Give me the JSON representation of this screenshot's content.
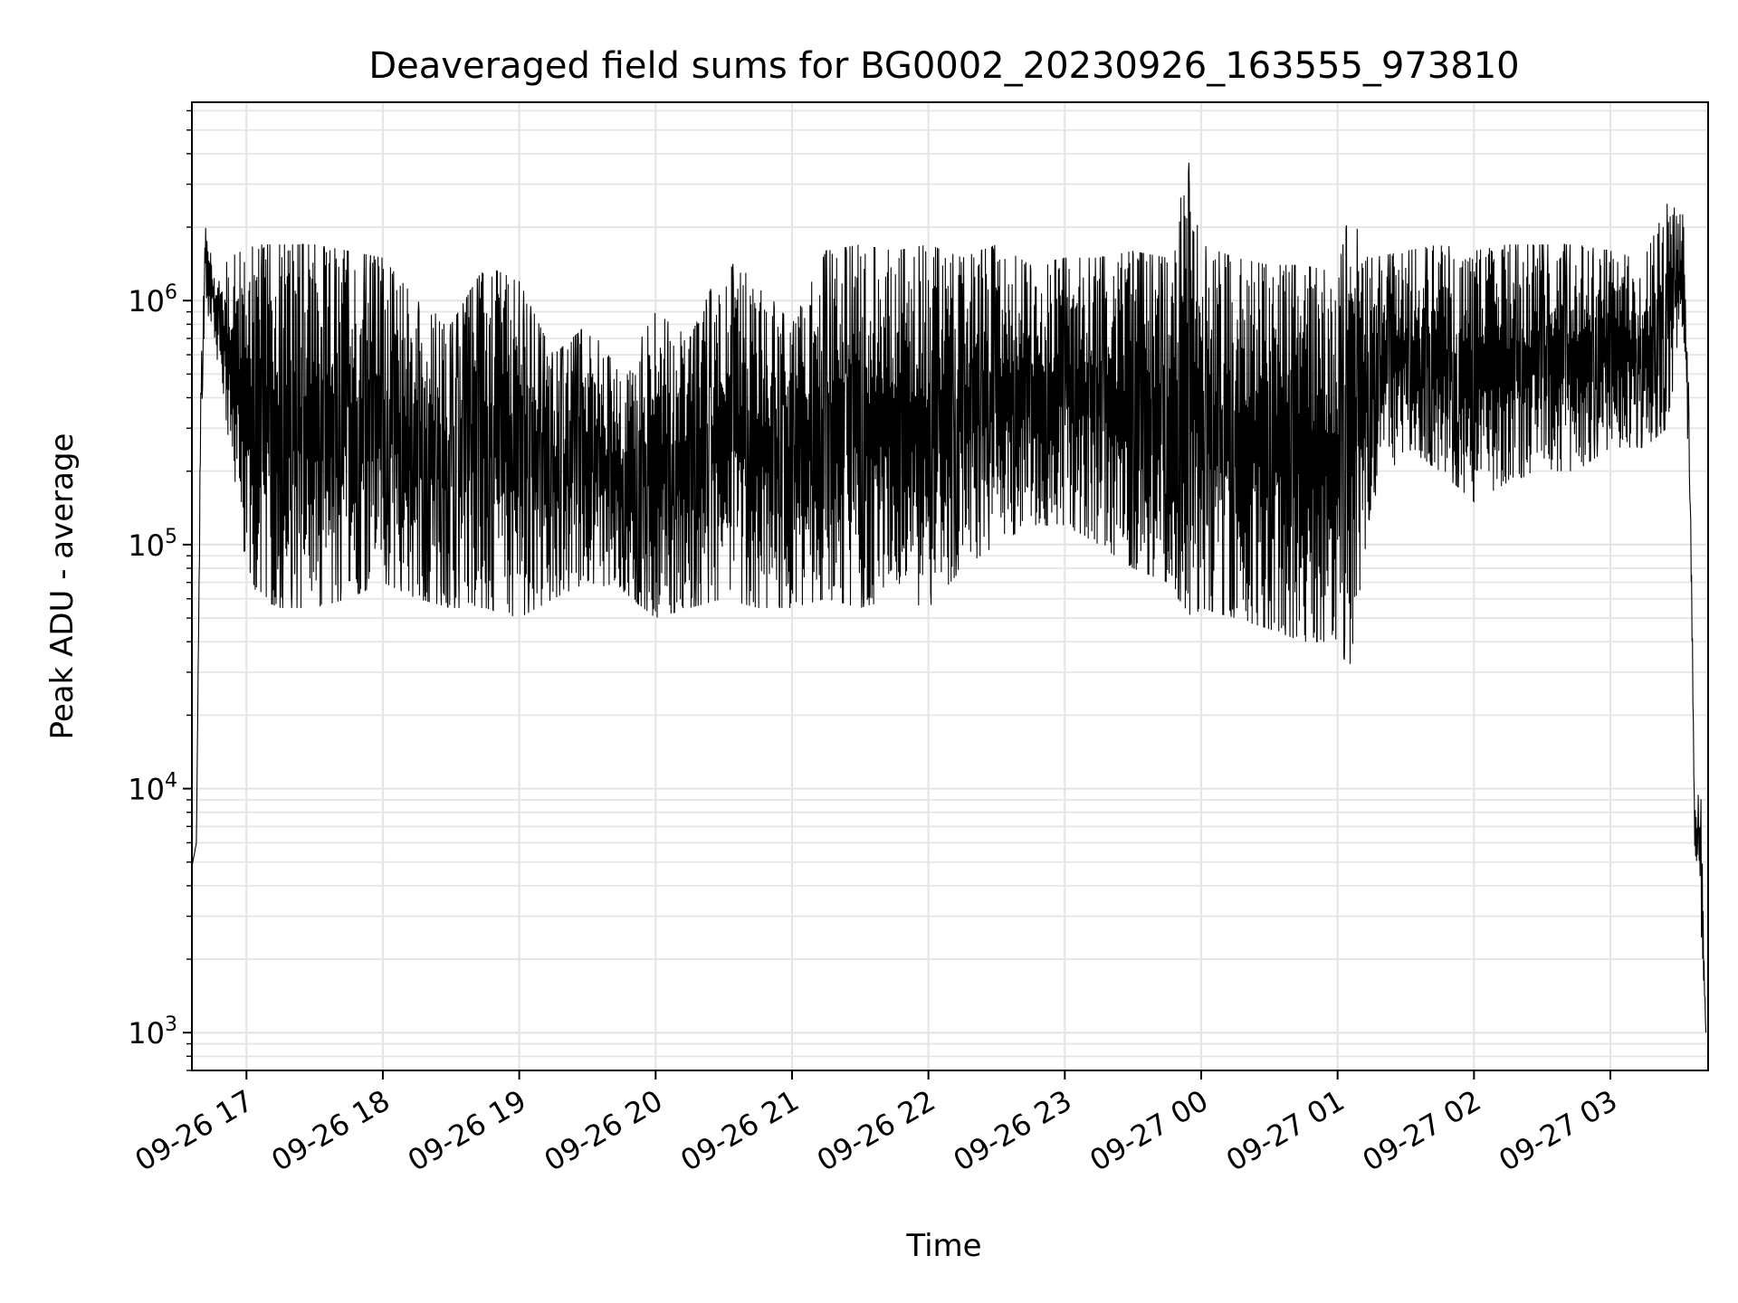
{
  "chart_data": {
    "type": "line",
    "title": "Deaveraged field sums for BG0002_20230926_163555_973810",
    "xlabel": "Time",
    "ylabel": "Peak ADU - average",
    "yscale": "log",
    "xlim": [
      "2023-09-26 16:36",
      "2023-09-27 03:43"
    ],
    "ylim": [
      700,
      6500000
    ],
    "grid": true,
    "grid_which": "both",
    "line_color": "#000000",
    "x_tick_labels": [
      "09-26 17",
      "09-26 18",
      "09-26 19",
      "09-26 20",
      "09-26 21",
      "09-26 22",
      "09-26 23",
      "09-27 00",
      "09-27 01",
      "09-27 02",
      "09-27 03"
    ],
    "x_tick_values": [
      "2023-09-26 17:00",
      "2023-09-26 18:00",
      "2023-09-26 19:00",
      "2023-09-26 20:00",
      "2023-09-26 21:00",
      "2023-09-26 22:00",
      "2023-09-26 23:00",
      "2023-09-27 00:00",
      "2023-09-27 01:00",
      "2023-09-27 02:00",
      "2023-09-27 03:00"
    ],
    "y_tick_values": [
      1000,
      10000,
      100000,
      1000000
    ],
    "y_tick_base": "10",
    "y_tick_exponents": [
      "3",
      "4",
      "5",
      "6"
    ],
    "series": [
      {
        "x": [
          "2023-09-26 16:36",
          "2023-09-26 16:38",
          "2023-09-26 16:40",
          "2023-09-26 16:42",
          "2023-09-26 16:45",
          "2023-09-26 16:48",
          "2023-09-26 16:52",
          "2023-09-26 16:58",
          "2023-09-26 17:05",
          "2023-09-26 17:15",
          "2023-09-26 17:30",
          "2023-09-26 17:45",
          "2023-09-26 18:00",
          "2023-09-26 18:15",
          "2023-09-26 18:30",
          "2023-09-26 18:45",
          "2023-09-26 19:00",
          "2023-09-26 19:15",
          "2023-09-26 19:30",
          "2023-09-26 19:45",
          "2023-09-26 20:00",
          "2023-09-26 20:15",
          "2023-09-26 20:30",
          "2023-09-26 20:45",
          "2023-09-26 21:00",
          "2023-09-26 21:15",
          "2023-09-26 21:30",
          "2023-09-26 21:45",
          "2023-09-26 22:00",
          "2023-09-26 22:15",
          "2023-09-26 22:30",
          "2023-09-26 22:45",
          "2023-09-26 23:00",
          "2023-09-26 23:15",
          "2023-09-26 23:30",
          "2023-09-26 23:45",
          "2023-09-26 23:56",
          "2023-09-27 00:00",
          "2023-09-27 00:15",
          "2023-09-27 00:30",
          "2023-09-27 00:45",
          "2023-09-27 01:00",
          "2023-09-27 01:05",
          "2023-09-27 01:15",
          "2023-09-27 01:30",
          "2023-09-27 01:45",
          "2023-09-27 02:00",
          "2023-09-27 02:15",
          "2023-09-27 02:30",
          "2023-09-27 02:45",
          "2023-09-27 03:00",
          "2023-09-27 03:15",
          "2023-09-27 03:25",
          "2023-09-27 03:32",
          "2023-09-27 03:35",
          "2023-09-27 03:37",
          "2023-09-27 03:40",
          "2023-09-27 03:42"
        ],
        "low": [
          4800,
          6000,
          300000,
          900000,
          800000,
          500000,
          250000,
          100000,
          60000,
          55000,
          55000,
          60000,
          70000,
          60000,
          55000,
          55000,
          50000,
          60000,
          70000,
          65000,
          50000,
          55000,
          60000,
          55000,
          55000,
          60000,
          55000,
          60000,
          55000,
          80000,
          100000,
          120000,
          120000,
          100000,
          80000,
          70000,
          50000,
          55000,
          50000,
          45000,
          40000,
          40000,
          30000,
          150000,
          250000,
          200000,
          150000,
          180000,
          200000,
          200000,
          250000,
          250000,
          300000,
          800000,
          150000,
          6000,
          2500,
          1000
        ],
        "high": [
          4800,
          6000,
          600000,
          2000000,
          1500000,
          1200000,
          1500000,
          1600000,
          1700000,
          1700000,
          1700000,
          1600000,
          1500000,
          1000000,
          800000,
          1400000,
          1200000,
          600000,
          800000,
          500000,
          900000,
          700000,
          1500000,
          1200000,
          800000,
          1600000,
          1700000,
          1600000,
          1700000,
          1500000,
          1700000,
          1400000,
          1500000,
          1500000,
          1600000,
          1500000,
          4200000,
          1700000,
          1500000,
          1400000,
          1400000,
          1300000,
          2300000,
          1500000,
          1600000,
          1700000,
          1600000,
          1700000,
          1700000,
          1700000,
          1600000,
          1500000,
          2500000,
          2300000,
          300000,
          10000,
          9000,
          1000
        ]
      }
    ]
  }
}
